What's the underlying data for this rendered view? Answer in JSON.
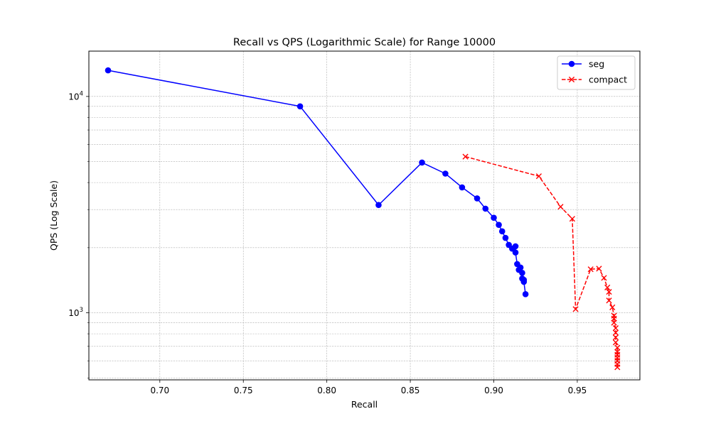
{
  "chart_data": {
    "type": "line",
    "title": "Recall vs QPS (Logarithmic Scale) for Range 10000",
    "xlabel": "Recall",
    "ylabel": "QPS (Log Scale)",
    "x_scale": "linear",
    "y_scale": "log",
    "xlim": [
      0.6575,
      0.9875
    ],
    "ylim": [
      490,
      16200
    ],
    "xticks": [
      0.7,
      0.75,
      0.8,
      0.85,
      0.9,
      0.95
    ],
    "xtick_labels": [
      "0.70",
      "0.75",
      "0.80",
      "0.85",
      "0.90",
      "0.95"
    ],
    "yticks_major": [
      1000,
      10000
    ],
    "ytick_labels": [
      {
        "base": "10",
        "exp": "3"
      },
      {
        "base": "10",
        "exp": "4"
      }
    ],
    "grid": true,
    "legend_position": "top-right",
    "series": [
      {
        "name": "seg",
        "color": "#0000ff",
        "line_style": "solid",
        "marker": "circle",
        "points": [
          [
            0.669,
            13200
          ],
          [
            0.784,
            9000
          ],
          [
            0.831,
            3150
          ],
          [
            0.857,
            4950
          ],
          [
            0.871,
            4400
          ],
          [
            0.881,
            3800
          ],
          [
            0.89,
            3380
          ],
          [
            0.895,
            3030
          ],
          [
            0.9,
            2750
          ],
          [
            0.903,
            2550
          ],
          [
            0.905,
            2380
          ],
          [
            0.907,
            2220
          ],
          [
            0.909,
            2060
          ],
          [
            0.911,
            1980
          ],
          [
            0.913,
            2030
          ],
          [
            0.913,
            1900
          ],
          [
            0.914,
            1680
          ],
          [
            0.915,
            1580
          ],
          [
            0.916,
            1620
          ],
          [
            0.917,
            1530
          ],
          [
            0.917,
            1440
          ],
          [
            0.918,
            1420
          ],
          [
            0.918,
            1390
          ],
          [
            0.919,
            1220
          ]
        ]
      },
      {
        "name": "compact",
        "color": "#ff0000",
        "line_style": "dashed",
        "marker": "x",
        "points": [
          [
            0.883,
            5270
          ],
          [
            0.927,
            4280
          ],
          [
            0.94,
            3090
          ],
          [
            0.947,
            2720
          ],
          [
            0.949,
            1040
          ],
          [
            0.958,
            1590
          ],
          [
            0.963,
            1600
          ],
          [
            0.966,
            1450
          ],
          [
            0.968,
            1310
          ],
          [
            0.969,
            1250
          ],
          [
            0.969,
            1140
          ],
          [
            0.971,
            1060
          ],
          [
            0.972,
            970
          ],
          [
            0.972,
            940
          ],
          [
            0.972,
            900
          ],
          [
            0.973,
            850
          ],
          [
            0.973,
            810
          ],
          [
            0.973,
            770
          ],
          [
            0.973,
            730
          ],
          [
            0.974,
            690
          ],
          [
            0.974,
            660
          ],
          [
            0.974,
            640
          ],
          [
            0.974,
            620
          ],
          [
            0.974,
            600
          ],
          [
            0.974,
            580
          ],
          [
            0.974,
            560
          ]
        ]
      }
    ]
  }
}
